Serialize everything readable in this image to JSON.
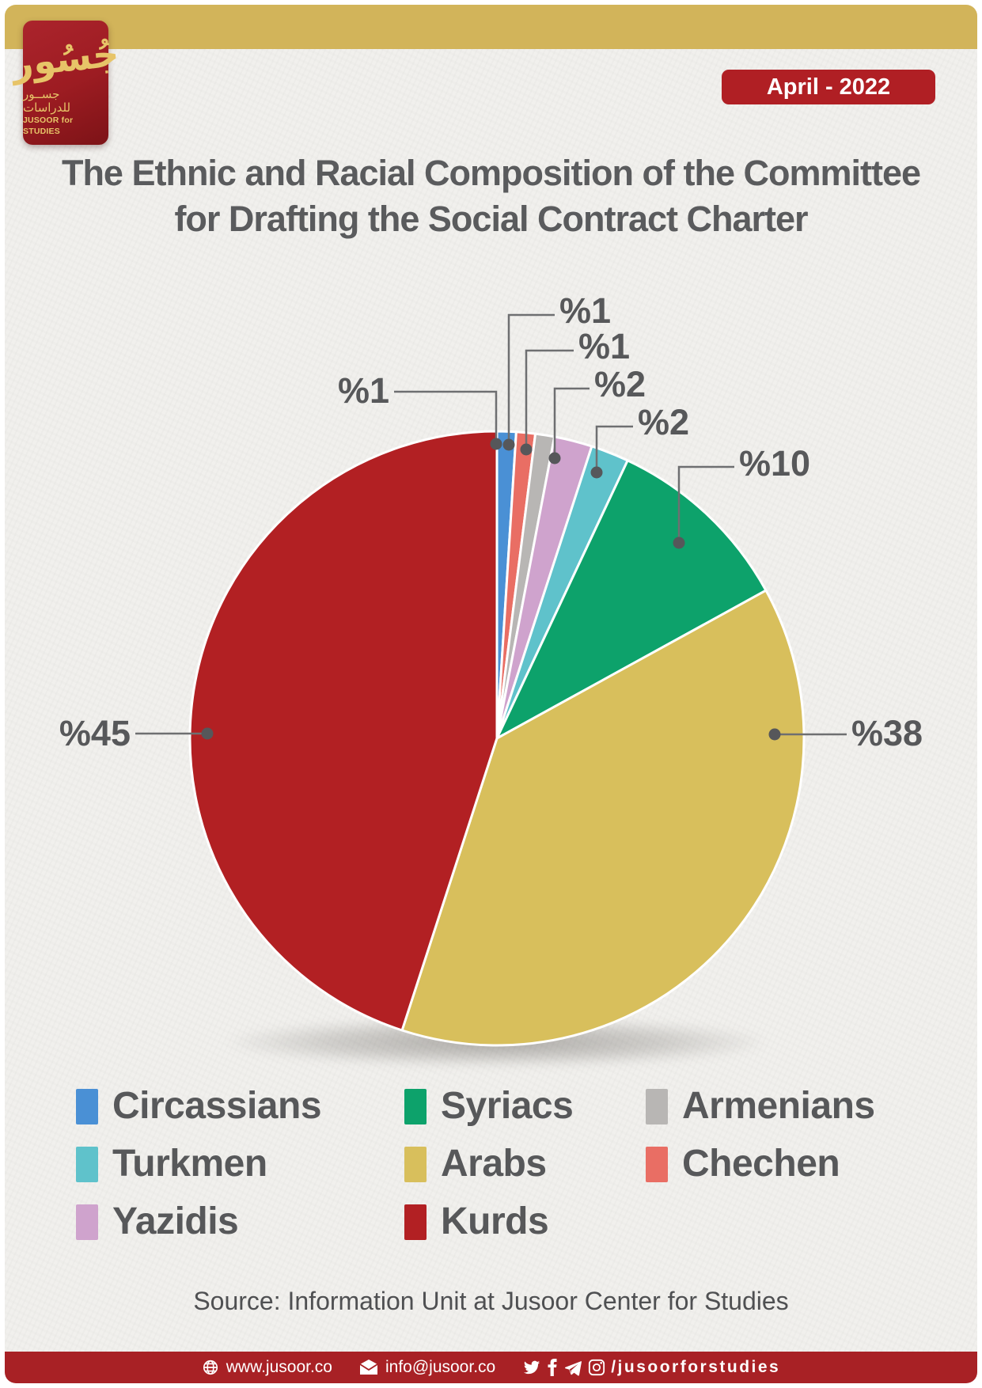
{
  "header": {
    "badge": "April - 2022",
    "logo": {
      "calligraphy": "جُسُور",
      "arabic_name": "جســور للدراسات",
      "latin_name": "JUSOOR for STUDIES"
    }
  },
  "title": {
    "line1": "The Ethnic and Racial Composition of the Committee",
    "line2": "for Drafting the Social Contract Charter"
  },
  "chart_data": {
    "type": "pie",
    "title": "The Ethnic and Racial Composition of the Committee for Drafting the Social Contract Charter",
    "unit": "percent",
    "order": "clockwise-from-top",
    "series": [
      {
        "name": "Circassians",
        "value": 1,
        "label": "%1",
        "color": "#4a90d5"
      },
      {
        "name": "Chechen",
        "value": 1,
        "label": "%1",
        "color": "#e96e64"
      },
      {
        "name": "Armenians",
        "value": 1,
        "label": "%1",
        "color": "#b8b6b4"
      },
      {
        "name": "Yazidis",
        "value": 2,
        "label": "%2",
        "color": "#cfa3cd"
      },
      {
        "name": "Turkmen",
        "value": 2,
        "label": "%2",
        "color": "#5fc2cb"
      },
      {
        "name": "Syriacs",
        "value": 10,
        "label": "%10",
        "color": "#0da26b"
      },
      {
        "name": "Arabs",
        "value": 38,
        "label": "%38",
        "color": "#d8bf5c"
      },
      {
        "name": "Kurds",
        "value": 45,
        "label": "%45",
        "color": "#b22023"
      }
    ]
  },
  "legend": {
    "items": [
      {
        "label": "Circassians",
        "color": "#4a90d5"
      },
      {
        "label": "Syriacs",
        "color": "#0da26b"
      },
      {
        "label": "Armenians",
        "color": "#b8b6b4"
      },
      {
        "label": "Turkmen",
        "color": "#5fc2cb"
      },
      {
        "label": "Arabs",
        "color": "#d8bf5c"
      },
      {
        "label": "Chechen",
        "color": "#e96e64"
      },
      {
        "label": "Yazidis",
        "color": "#cfa3cd"
      },
      {
        "label": "Kurds",
        "color": "#b22023"
      }
    ]
  },
  "source": "Source: Information Unit at Jusoor Center for Studies",
  "footer": {
    "website": "www.jusoor.co",
    "email": "info@jusoor.co",
    "social_handle": "/jusoorforstudies",
    "icons": [
      "globe",
      "email",
      "twitter",
      "facebook",
      "telegram",
      "instagram"
    ]
  },
  "colors": {
    "topbar_gold": "#d2b45a",
    "badge_red": "#b01f24",
    "footer_red": "#a82125",
    "title_text": "#5a5b5d",
    "label_text": "#57585a",
    "leader_line": "#6e6f71",
    "paper": "#f1f0ed"
  }
}
